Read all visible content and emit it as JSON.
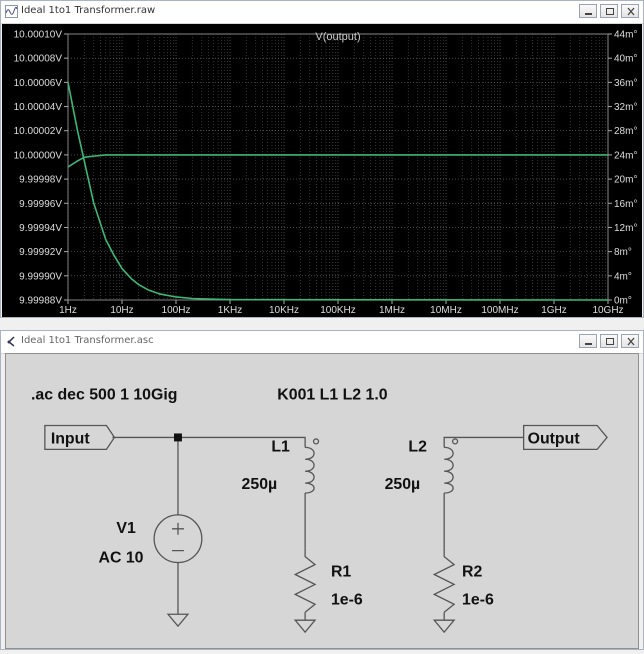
{
  "plot_window": {
    "title": "Ideal 1to1 Transformer.raw",
    "trace_label": "V(output)"
  },
  "schematic_window": {
    "title": "Ideal 1to1 Transformer.asc"
  },
  "chart_data": {
    "type": "line",
    "title": "V(output)",
    "x_scale": "log",
    "x_range": [
      1,
      10000000000
    ],
    "x_ticks": [
      "1Hz",
      "10Hz",
      "100Hz",
      "1KHz",
      "10KHz",
      "100KHz",
      "1MHz",
      "10MHz",
      "100MHz",
      "1GHz",
      "10GHz"
    ],
    "y_left_range": [
      9.99988,
      10.0001
    ],
    "y_left_ticks": [
      "10.00010V",
      "10.00008V",
      "10.00006V",
      "10.00004V",
      "10.00002V",
      "10.00000V",
      "9.99998V",
      "9.99996V",
      "9.99994V",
      "9.99992V",
      "9.99990V",
      "9.99988V"
    ],
    "y_right_range": [
      0,
      44
    ],
    "y_right_ticks": [
      "44m°",
      "40m°",
      "36m°",
      "32m°",
      "28m°",
      "24m°",
      "20m°",
      "16m°",
      "12m°",
      "8m°",
      "4m°",
      "0m°"
    ],
    "series": [
      {
        "axis": "left",
        "color": "#3cb878",
        "x": [
          1,
          1.5,
          2,
          3,
          5,
          10,
          100,
          10000,
          10000000000
        ],
        "values": [
          9.99999,
          9.999995,
          9.999998,
          9.999999,
          10.0,
          10.0,
          10.0,
          10.0,
          10.0
        ]
      },
      {
        "axis": "right",
        "color": "#3cb878",
        "x": [
          1,
          1.5,
          2,
          3,
          5,
          7,
          10,
          15,
          20,
          30,
          50,
          100,
          200,
          1000,
          10000000000
        ],
        "values": [
          36,
          28,
          23,
          16,
          10,
          7.5,
          5.2,
          3.5,
          2.6,
          1.7,
          1.0,
          0.5,
          0.25,
          0.05,
          0
        ]
      }
    ],
    "grid": true
  },
  "schematic": {
    "directive_ac": ".ac dec 500 1 10Gig",
    "directive_k": "K001 L1 L2 1.0",
    "net_input": "Input",
    "net_output": "Output",
    "v1_name": "V1",
    "v1_value": "AC 10",
    "l1_name": "L1",
    "l1_value": "250µ",
    "l2_name": "L2",
    "l2_value": "250µ",
    "r1_name": "R1",
    "r1_value": "1e-6",
    "r2_name": "R2",
    "r2_value": "1e-6"
  },
  "colors": {
    "trace": "#3cb878",
    "plot_bg": "#000000",
    "schematic_bg": "#d6d6d6"
  }
}
